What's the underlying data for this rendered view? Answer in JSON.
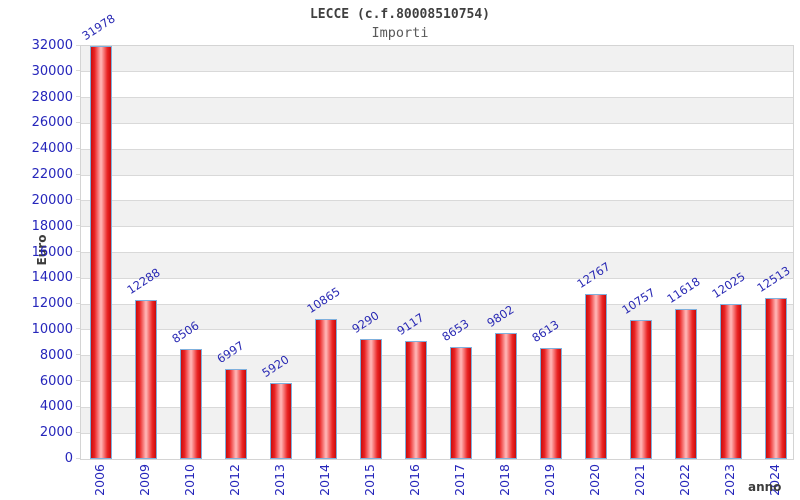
{
  "chart_data": {
    "type": "bar",
    "title": "LECCE (c.f.80008510754)",
    "subtitle": "Importi",
    "categories": [
      "2006",
      "2009",
      "2010",
      "2012",
      "2013",
      "2014",
      "2015",
      "2016",
      "2017",
      "2018",
      "2019",
      "2020",
      "2021",
      "2022",
      "2023",
      "2024"
    ],
    "values": [
      31978,
      12288,
      8506,
      6997,
      5920,
      10865,
      9290,
      9117,
      8653,
      9802,
      8613,
      12767,
      10757,
      11618,
      12025,
      12513
    ],
    "xlabel": "anno",
    "ylabel": "Euro",
    "ylim": [
      0,
      32000
    ],
    "ytick_step": 2000,
    "grid": true,
    "legend": false,
    "bar_value_labels": true,
    "colors": {
      "bar_edge_dark": "#c90d0d",
      "bar_fill": "#ea2424",
      "bar_highlight": "#ffb2b2",
      "bar_border": "#7fb0dd",
      "tick_label": "#2626bb",
      "value_label": "#2a2ab4",
      "axis_title": "#3c3c3c",
      "title": "#3f3f3f",
      "subtitle": "#5a5a5a",
      "stripe": "#f1f1f1",
      "gridline": "#d9d9d9",
      "plot_border": "#d4d4d4",
      "background": "#ffffff"
    }
  }
}
